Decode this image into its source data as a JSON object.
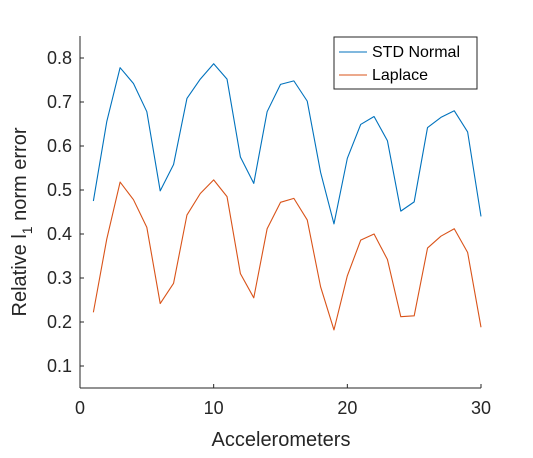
{
  "chart_data": {
    "type": "line",
    "title": "",
    "xlabel": "Accelerometers",
    "ylabel": "Relative l1 norm error",
    "ylabel_main": "Relative l",
    "ylabel_sub": "1",
    "ylabel_tail": " norm error",
    "xlim": [
      0,
      30
    ],
    "ylim": [
      0.05,
      0.85
    ],
    "xticks": [
      0,
      10,
      20,
      30
    ],
    "yticks": [
      0.1,
      0.2,
      0.3,
      0.4,
      0.5,
      0.6,
      0.7,
      0.8
    ],
    "grid": false,
    "legend_position": "top-right",
    "x": [
      1,
      2,
      3,
      4,
      5,
      6,
      7,
      8,
      9,
      10,
      11,
      12,
      13,
      14,
      15,
      16,
      17,
      18,
      19,
      20,
      21,
      22,
      23,
      24,
      25,
      26,
      27,
      28,
      29,
      30
    ],
    "series": [
      {
        "name": "STD Normal",
        "color": "#0072BD",
        "values": [
          0.475,
          0.655,
          0.778,
          0.742,
          0.678,
          0.498,
          0.558,
          0.708,
          0.752,
          0.787,
          0.752,
          0.575,
          0.515,
          0.678,
          0.74,
          0.748,
          0.702,
          0.54,
          0.423,
          0.572,
          0.649,
          0.667,
          0.612,
          0.452,
          0.473,
          0.642,
          0.665,
          0.68,
          0.632,
          0.44
        ]
      },
      {
        "name": "Laplace",
        "color": "#D95319",
        "values": [
          0.222,
          0.388,
          0.518,
          0.478,
          0.415,
          0.242,
          0.288,
          0.443,
          0.492,
          0.523,
          0.485,
          0.31,
          0.255,
          0.412,
          0.472,
          0.481,
          0.432,
          0.28,
          0.182,
          0.305,
          0.386,
          0.4,
          0.342,
          0.212,
          0.214,
          0.368,
          0.395,
          0.412,
          0.358,
          0.188
        ]
      }
    ]
  }
}
